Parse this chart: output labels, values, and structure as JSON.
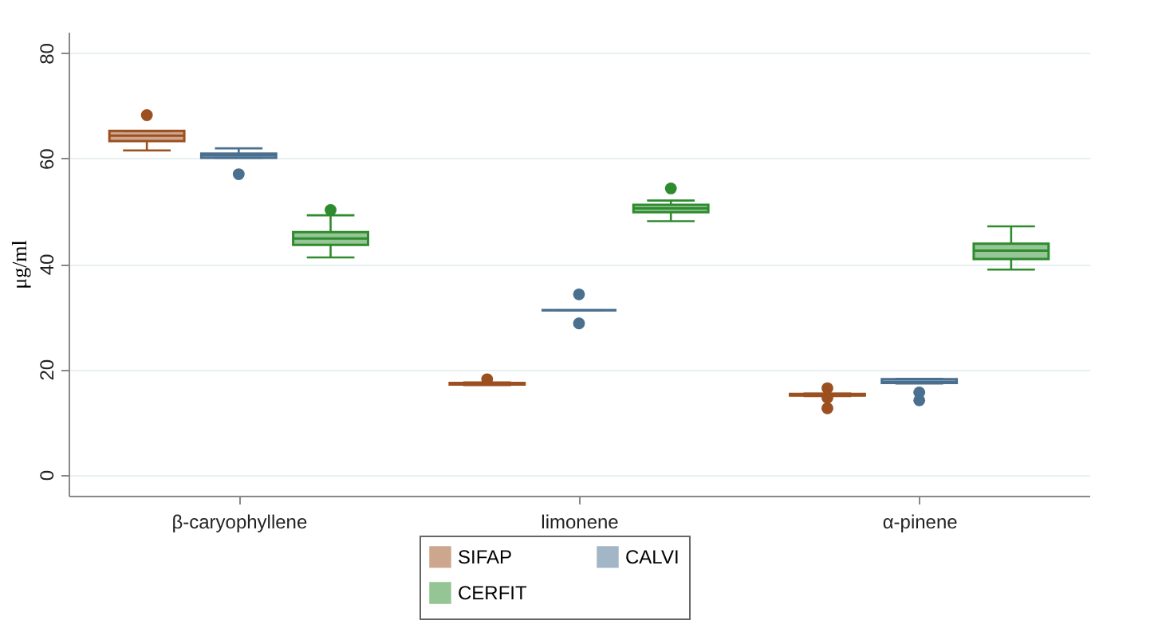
{
  "chart_data": {
    "type": "box",
    "ylabel": "μg/ml",
    "categories": [
      "β-caryophyllene",
      "limonene",
      "α-pinene"
    ],
    "ylim": [
      -4,
      84
    ],
    "yticks": [
      0,
      20,
      40,
      60,
      80
    ],
    "grid": "y",
    "legend": "bottom",
    "series": [
      {
        "name": "SIFAP",
        "color": "#9c5020",
        "boxes": [
          {
            "low": 61.5,
            "q1": 63.3,
            "median": 64.3,
            "q3": 65.2,
            "high": 65.2,
            "outliers": [
              68.2
            ]
          },
          {
            "low": 17.0,
            "q1": 17.1,
            "median": 17.3,
            "q3": 17.4,
            "high": 17.5,
            "outliers": [
              18.1
            ]
          },
          {
            "low": 14.9,
            "q1": 15.0,
            "median": 15.1,
            "q3": 15.3,
            "high": 15.4,
            "outliers": [
              16.4,
              14.6,
              12.6
            ]
          }
        ]
      },
      {
        "name": "CALVI",
        "color": "#4a6f8f",
        "boxes": [
          {
            "low": 60.1,
            "q1": 60.1,
            "median": 60.6,
            "q3": 60.9,
            "high": 61.9,
            "outliers": [
              57.0
            ]
          },
          {
            "low": 31.2,
            "q1": 31.2,
            "median": 31.2,
            "q3": 31.2,
            "high": 31.2,
            "outliers": [
              34.2,
              28.7
            ]
          },
          {
            "low": 17.3,
            "q1": 17.4,
            "median": 17.6,
            "q3": 18.1,
            "high": 18.2,
            "outliers": [
              15.6,
              14.1
            ]
          }
        ]
      },
      {
        "name": "CERFIT",
        "color": "#2e8b2e",
        "boxes": [
          {
            "low": 41.2,
            "q1": 43.6,
            "median": 44.8,
            "q3": 46.0,
            "high": 49.2,
            "outliers": [
              50.2
            ]
          },
          {
            "low": 48.1,
            "q1": 49.8,
            "median": 50.5,
            "q3": 51.2,
            "high": 52.0,
            "outliers": [
              54.3
            ]
          },
          {
            "low": 38.9,
            "q1": 40.9,
            "median": 42.5,
            "q3": 43.8,
            "high": 47.1
          }
        ]
      }
    ]
  }
}
